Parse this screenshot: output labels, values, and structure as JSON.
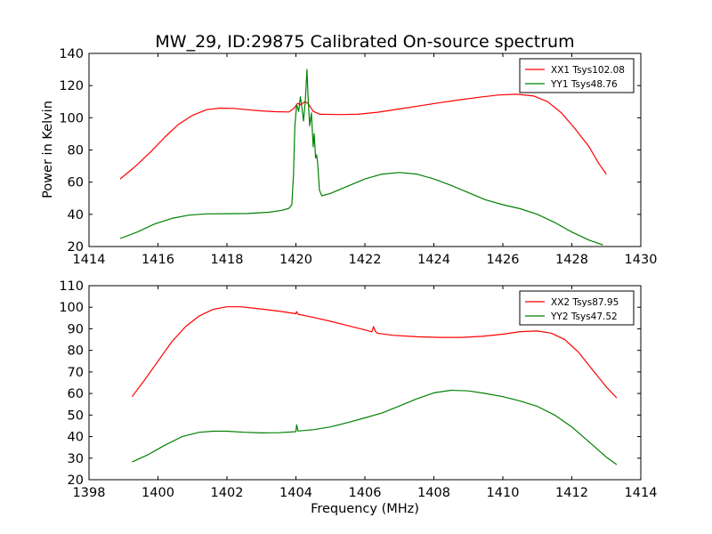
{
  "title": "MW_29, ID:29875 Calibrated On-source spectrum",
  "ylabel": "Power in Kelvin",
  "xlabel": "Frequency (MHz)",
  "colors": {
    "xx": "#ff0000",
    "yy": "#008000"
  },
  "chart_data": [
    {
      "type": "line",
      "xlim": [
        1414,
        1430
      ],
      "ylim": [
        20,
        140
      ],
      "xticks": [
        1414,
        1416,
        1418,
        1420,
        1422,
        1424,
        1426,
        1428,
        1430
      ],
      "yticks": [
        20,
        40,
        60,
        80,
        100,
        120,
        140
      ],
      "legend_position": "top-right",
      "series": [
        {
          "name": "XX1 Tsys102.08",
          "color": "#ff0000",
          "points": [
            [
              1414.9,
              62
            ],
            [
              1415.3,
              69
            ],
            [
              1415.8,
              79
            ],
            [
              1416.2,
              88
            ],
            [
              1416.6,
              96
            ],
            [
              1417.0,
              101.5
            ],
            [
              1417.4,
              105
            ],
            [
              1417.8,
              106
            ],
            [
              1418.2,
              105.8
            ],
            [
              1418.6,
              105
            ],
            [
              1419.0,
              104.3
            ],
            [
              1419.4,
              103.8
            ],
            [
              1419.8,
              103.6
            ],
            [
              1419.95,
              106
            ],
            [
              1420.05,
              109
            ],
            [
              1420.15,
              108
            ],
            [
              1420.25,
              110
            ],
            [
              1420.35,
              109
            ],
            [
              1420.5,
              104
            ],
            [
              1420.7,
              102.2
            ],
            [
              1421.2,
              102
            ],
            [
              1421.8,
              102.2
            ],
            [
              1422.4,
              103.5
            ],
            [
              1423.0,
              105.5
            ],
            [
              1423.6,
              107.5
            ],
            [
              1424.2,
              109.5
            ],
            [
              1424.8,
              111.3
            ],
            [
              1425.4,
              113
            ],
            [
              1425.9,
              114.2
            ],
            [
              1426.4,
              114.6
            ],
            [
              1426.9,
              113.5
            ],
            [
              1427.3,
              110
            ],
            [
              1427.7,
              103
            ],
            [
              1428.1,
              93
            ],
            [
              1428.5,
              82
            ],
            [
              1428.8,
              71
            ],
            [
              1429.0,
              65
            ]
          ]
        },
        {
          "name": "YY1 Tsys48.76",
          "color": "#008000",
          "points": [
            [
              1414.9,
              25
            ],
            [
              1415.4,
              29
            ],
            [
              1415.9,
              34
            ],
            [
              1416.4,
              37.5
            ],
            [
              1416.9,
              39.5
            ],
            [
              1417.4,
              40.3
            ],
            [
              1418.0,
              40.4
            ],
            [
              1418.6,
              40.5
            ],
            [
              1419.2,
              41.3
            ],
            [
              1419.6,
              42.5
            ],
            [
              1419.8,
              43.8
            ],
            [
              1419.88,
              46
            ],
            [
              1419.93,
              65
            ],
            [
              1419.97,
              95
            ],
            [
              1420.02,
              108
            ],
            [
              1420.08,
              104
            ],
            [
              1420.13,
              113
            ],
            [
              1420.18,
              105
            ],
            [
              1420.22,
              98
            ],
            [
              1420.27,
              110
            ],
            [
              1420.32,
              130
            ],
            [
              1420.36,
              110
            ],
            [
              1420.4,
              95
            ],
            [
              1420.45,
              103
            ],
            [
              1420.5,
              82
            ],
            [
              1420.53,
              90
            ],
            [
              1420.57,
              75
            ],
            [
              1420.6,
              77
            ],
            [
              1420.63,
              72
            ],
            [
              1420.68,
              55
            ],
            [
              1420.75,
              51.5
            ],
            [
              1421.0,
              53
            ],
            [
              1421.5,
              57.5
            ],
            [
              1422.0,
              62
            ],
            [
              1422.5,
              65
            ],
            [
              1423.0,
              66
            ],
            [
              1423.5,
              65
            ],
            [
              1424.0,
              62
            ],
            [
              1424.5,
              58
            ],
            [
              1425.0,
              53.5
            ],
            [
              1425.5,
              49
            ],
            [
              1426.0,
              46
            ],
            [
              1426.5,
              43.5
            ],
            [
              1427.0,
              40
            ],
            [
              1427.5,
              35
            ],
            [
              1428.0,
              29
            ],
            [
              1428.5,
              24
            ],
            [
              1428.9,
              21
            ]
          ]
        }
      ]
    },
    {
      "type": "line",
      "xlim": [
        1398,
        1414
      ],
      "ylim": [
        20,
        110
      ],
      "xticks": [
        1398,
        1400,
        1402,
        1404,
        1406,
        1408,
        1410,
        1412,
        1414
      ],
      "yticks": [
        20,
        30,
        40,
        50,
        60,
        70,
        80,
        90,
        100,
        110
      ],
      "legend_position": "top-right",
      "series": [
        {
          "name": "XX2 Tsys87.95",
          "color": "#ff0000",
          "points": [
            [
              1399.25,
              58.5
            ],
            [
              1399.6,
              66
            ],
            [
              1400.0,
              75
            ],
            [
              1400.4,
              84
            ],
            [
              1400.8,
              91
            ],
            [
              1401.2,
              96
            ],
            [
              1401.6,
              99
            ],
            [
              1402.0,
              100.2
            ],
            [
              1402.4,
              100.2
            ],
            [
              1402.8,
              99.5
            ],
            [
              1403.2,
              98.8
            ],
            [
              1403.6,
              98
            ],
            [
              1404.0,
              97
            ],
            [
              1404.02,
              98
            ],
            [
              1404.06,
              96.8
            ],
            [
              1404.5,
              95.3
            ],
            [
              1405.0,
              93.5
            ],
            [
              1405.5,
              91.5
            ],
            [
              1406.0,
              89.5
            ],
            [
              1406.2,
              88.6
            ],
            [
              1406.25,
              91
            ],
            [
              1406.3,
              89
            ],
            [
              1406.35,
              88
            ],
            [
              1406.8,
              87
            ],
            [
              1407.5,
              86.3
            ],
            [
              1408.2,
              86
            ],
            [
              1408.8,
              86
            ],
            [
              1409.4,
              86.5
            ],
            [
              1410.0,
              87.5
            ],
            [
              1410.5,
              88.7
            ],
            [
              1411.0,
              89
            ],
            [
              1411.4,
              88
            ],
            [
              1411.8,
              85
            ],
            [
              1412.2,
              79
            ],
            [
              1412.6,
              71
            ],
            [
              1413.0,
              63
            ],
            [
              1413.3,
              58
            ]
          ]
        },
        {
          "name": "YY2 Tsys47.52",
          "color": "#008000",
          "points": [
            [
              1399.25,
              28.2
            ],
            [
              1399.7,
              31.5
            ],
            [
              1400.2,
              36
            ],
            [
              1400.7,
              40
            ],
            [
              1401.2,
              42
            ],
            [
              1401.6,
              42.5
            ],
            [
              1402.0,
              42.5
            ],
            [
              1402.5,
              42
            ],
            [
              1403.0,
              41.7
            ],
            [
              1403.5,
              41.8
            ],
            [
              1404.0,
              42.3
            ],
            [
              1404.02,
              45.5
            ],
            [
              1404.06,
              42.6
            ],
            [
              1404.5,
              43.2
            ],
            [
              1405.0,
              44.5
            ],
            [
              1405.5,
              46.5
            ],
            [
              1406.0,
              48.7
            ],
            [
              1406.5,
              51
            ],
            [
              1407.0,
              54.2
            ],
            [
              1407.5,
              57.5
            ],
            [
              1408.0,
              60.3
            ],
            [
              1408.5,
              61.5
            ],
            [
              1409.0,
              61.2
            ],
            [
              1409.5,
              60
            ],
            [
              1410.0,
              58.5
            ],
            [
              1410.5,
              56.5
            ],
            [
              1411.0,
              54
            ],
            [
              1411.5,
              50
            ],
            [
              1412.0,
              44.5
            ],
            [
              1412.5,
              37.5
            ],
            [
              1413.0,
              30.5
            ],
            [
              1413.3,
              27
            ]
          ]
        }
      ]
    }
  ]
}
